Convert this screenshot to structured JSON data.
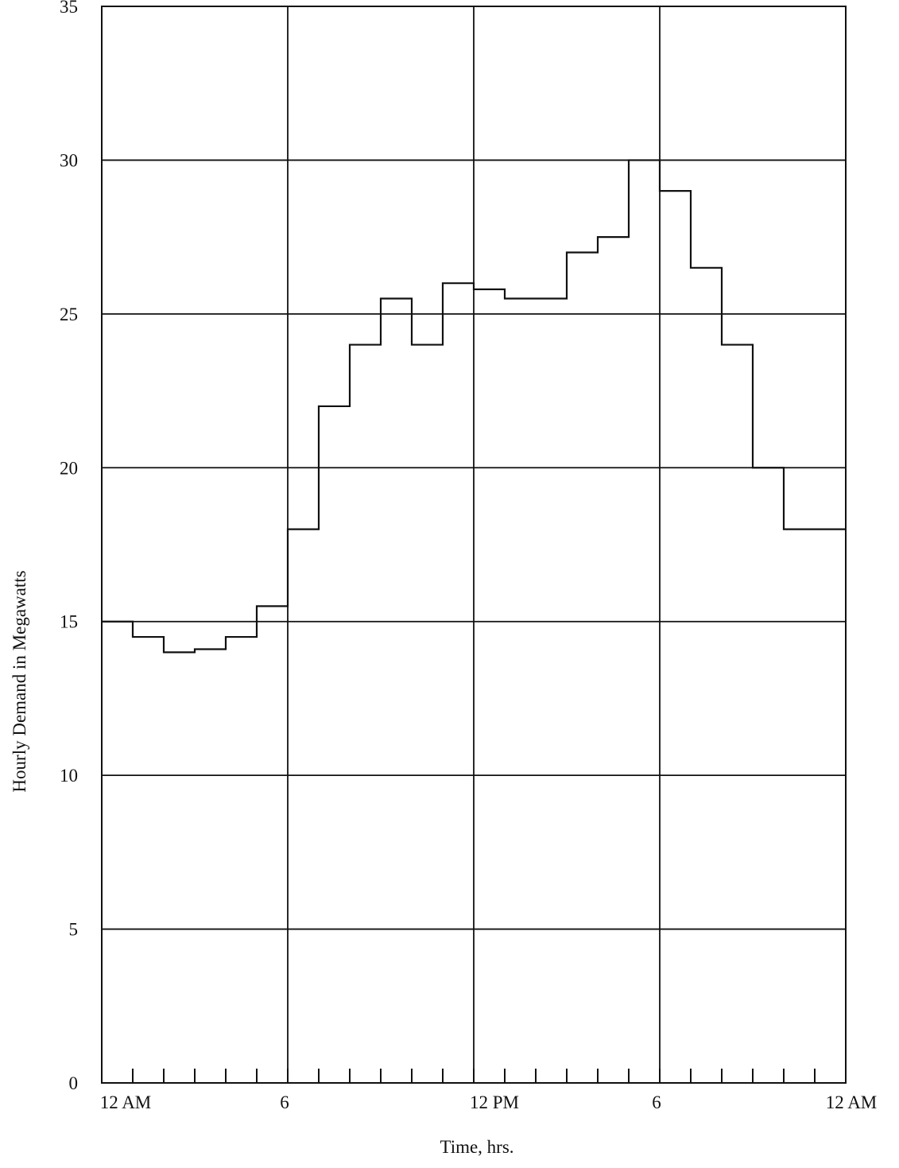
{
  "chart_data": {
    "type": "line",
    "step": true,
    "xlabel": "Time, hrs.",
    "ylabel": "Hourly Demand in Megawatts",
    "xlim": [
      0,
      24
    ],
    "ylim": [
      0,
      35
    ],
    "yticks": [
      0,
      5,
      10,
      15,
      20,
      25,
      30,
      35
    ],
    "xtick_labels": [
      {
        "hour": 0,
        "label": "12 AM"
      },
      {
        "hour": 6,
        "label": "6"
      },
      {
        "hour": 12,
        "label": "12 PM"
      },
      {
        "hour": 18,
        "label": "6"
      },
      {
        "hour": 24,
        "label": "12 AM"
      }
    ],
    "grid": true,
    "series": [
      {
        "hours": [
          0,
          1,
          2,
          3,
          4,
          5,
          6,
          7,
          8,
          9,
          10,
          11,
          12,
          13,
          14,
          15,
          16,
          17,
          18,
          19,
          20,
          21,
          22,
          23
        ],
        "values": [
          15.0,
          14.5,
          14.0,
          14.1,
          14.5,
          15.5,
          18.0,
          22.0,
          24.0,
          25.5,
          24.0,
          26.0,
          25.8,
          25.5,
          25.5,
          27.0,
          27.5,
          30.0,
          29.0,
          26.5,
          24.0,
          20.0,
          18.0,
          18.0
        ]
      }
    ]
  }
}
